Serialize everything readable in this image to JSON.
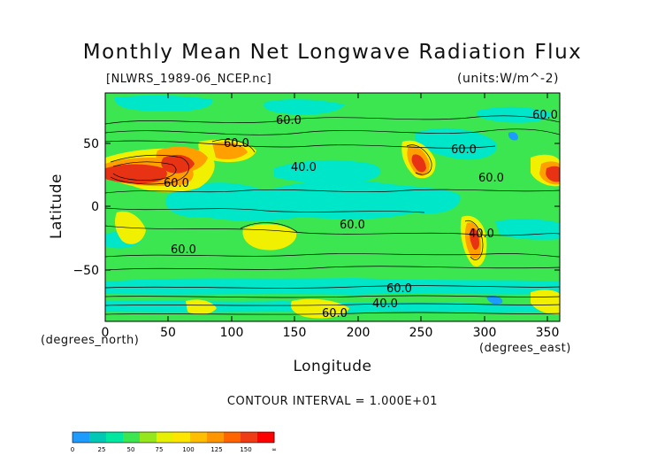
{
  "map": {
    "title": "Monthly Mean Net Longwave Radiation Flux",
    "file_label": "[NLWRS_1989-06_NCEP.nc]",
    "units_label": "(units:W/m^-2)",
    "xlabel": "Longitude",
    "ylabel": "Latitude",
    "x_unit": "(degrees_north)",
    "y_unit": "(degrees_east)",
    "contour_interval": "CONTOUR INTERVAL = 1.000E+01",
    "x_ticks": [
      "0",
      "50",
      "100",
      "150",
      "200",
      "250",
      "300",
      "350"
    ],
    "y_ticks": [
      "50",
      "0",
      "−50"
    ],
    "contour_labels": [
      "60.0",
      "60.0",
      "40.0",
      "60.0",
      "60.0",
      "60.0",
      "60.0",
      "40.0",
      "60.0",
      "60.0",
      "60.0",
      "40.0",
      "60.0"
    ],
    "colorbar": {
      "labels": [
        "0",
        "25",
        "50",
        "75",
        "100",
        "125",
        "150",
        "∞"
      ],
      "colors": [
        "#1e9bff",
        "#00c8b4",
        "#00e8a0",
        "#3ce650",
        "#96e61e",
        "#e6f000",
        "#ffe600",
        "#ffbe00",
        "#ff9600",
        "#ff6400",
        "#f03c14",
        "#ff0000"
      ]
    },
    "palette": {
      "cyan": "#00e6c8",
      "green": "#3ce650",
      "yellow": "#f0f000",
      "orange": "#ffa000",
      "red": "#e83214",
      "blue": "#1e9bff"
    }
  }
}
